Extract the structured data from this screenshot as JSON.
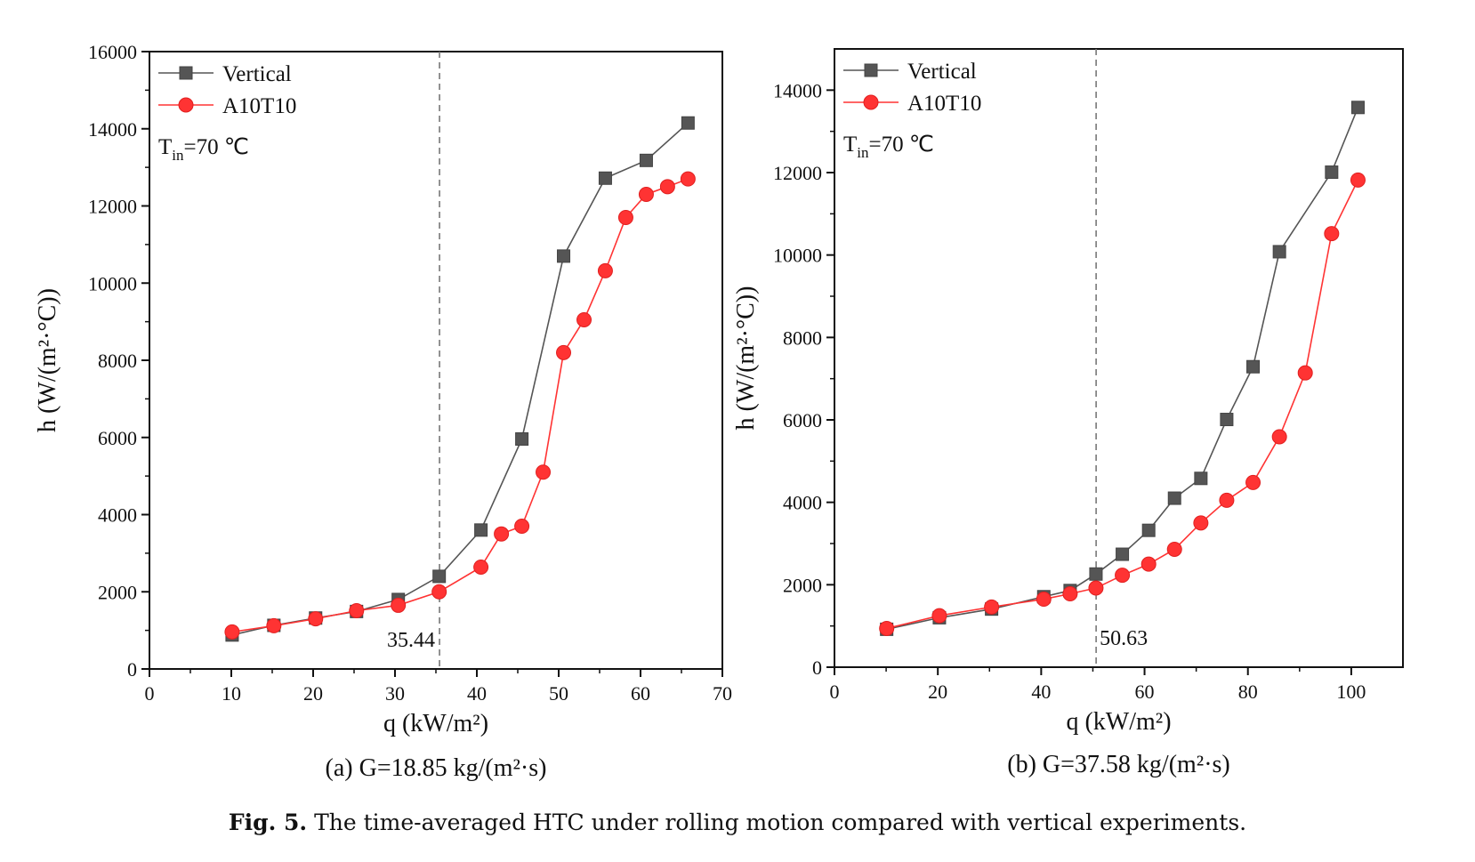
{
  "caption": {
    "label": "Fig. 5.",
    "text": "The time-averaged HTC under rolling motion compared with vertical experiments."
  },
  "chart_data": [
    {
      "type": "line",
      "subcaption": "(a) G=18.85 kg/(m²·s)",
      "xlabel": "q (kW/m²)",
      "ylabel": "h (W/(m²·°C))",
      "xlim": [
        0,
        70
      ],
      "ylim": [
        0,
        16000
      ],
      "xticks": [
        0,
        10,
        20,
        30,
        40,
        50,
        60,
        70
      ],
      "yticks": [
        0,
        2000,
        4000,
        6000,
        8000,
        10000,
        12000,
        14000,
        16000
      ],
      "annotation": "Tᵢₙ=70 °C",
      "annotation_main": "T",
      "annotation_sub": "in",
      "annotation_rest": "=70 ℃",
      "vline": {
        "x": 35.44,
        "label": "35.44"
      },
      "legend_position": "top-left",
      "series": [
        {
          "name": "Vertical",
          "color": "#555555",
          "marker": "square",
          "x": [
            10.1,
            15.2,
            20.3,
            25.3,
            30.4,
            35.4,
            40.5,
            45.5,
            50.6,
            55.7,
            60.7,
            65.8
          ],
          "y": [
            880,
            1130,
            1320,
            1490,
            1800,
            2400,
            3600,
            5960,
            10700,
            12720,
            13180,
            14150
          ]
        },
        {
          "name": "A10T10",
          "color": "#ff3333",
          "marker": "circle",
          "x": [
            10.1,
            15.2,
            20.3,
            25.3,
            30.4,
            35.4,
            40.5,
            43.0,
            45.5,
            48.1,
            50.6,
            53.1,
            55.7,
            58.2,
            60.7,
            63.3,
            65.8
          ],
          "y": [
            960,
            1120,
            1300,
            1510,
            1650,
            2000,
            2640,
            3500,
            3700,
            5100,
            8200,
            9050,
            10320,
            11700,
            12300,
            12500,
            12700
          ]
        }
      ]
    },
    {
      "type": "line",
      "subcaption": "(b) G=37.58 kg/(m²·s)",
      "xlabel": "q (kW/m²)",
      "ylabel": "h (W/(m²·°C))",
      "xlim": [
        0,
        110
      ],
      "ylim": [
        0,
        15000
      ],
      "xticks": [
        0,
        20,
        40,
        60,
        80,
        100
      ],
      "yticks": [
        0,
        2000,
        4000,
        6000,
        8000,
        10000,
        12000,
        14000
      ],
      "annotation_main": "T",
      "annotation_sub": "in",
      "annotation_rest": "=70 ℃",
      "vline": {
        "x": 50.63,
        "label": "50.63"
      },
      "legend_position": "top-left",
      "series": [
        {
          "name": "Vertical",
          "color": "#555555",
          "marker": "square",
          "x": [
            10.1,
            20.3,
            30.4,
            40.5,
            45.6,
            50.6,
            55.7,
            60.8,
            65.8,
            70.9,
            75.9,
            81.0,
            86.1,
            96.2,
            101.3
          ],
          "y": [
            920,
            1200,
            1410,
            1710,
            1860,
            2260,
            2740,
            3320,
            4100,
            4580,
            6010,
            7290,
            10080,
            12010,
            13580
          ]
        },
        {
          "name": "A10T10",
          "color": "#ff3333",
          "marker": "circle",
          "x": [
            10.1,
            20.3,
            30.4,
            40.5,
            45.6,
            50.6,
            55.7,
            60.8,
            65.8,
            70.9,
            75.9,
            81.0,
            86.1,
            91.1,
            96.2,
            101.3
          ],
          "y": [
            940,
            1250,
            1460,
            1650,
            1780,
            1920,
            2230,
            2500,
            2860,
            3500,
            4050,
            4480,
            5590,
            7140,
            10520,
            11820
          ]
        }
      ]
    }
  ]
}
